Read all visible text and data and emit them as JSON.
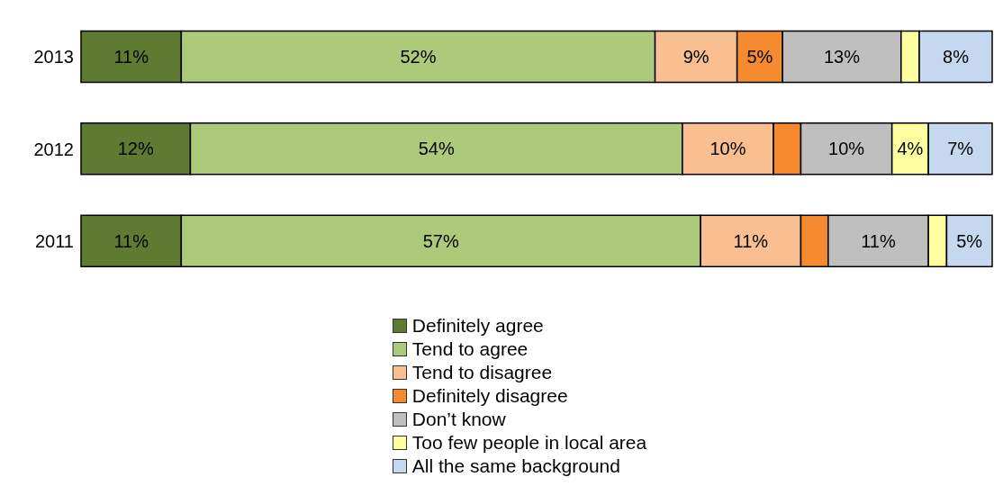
{
  "chart_data": {
    "type": "bar",
    "orientation": "horizontal",
    "stacked": true,
    "categories": [
      "2013",
      "2012",
      "2011"
    ],
    "legend": "bottom",
    "tick_labels": "y",
    "series": [
      {
        "name": "Definitely agree",
        "color": "#5e7b31",
        "values": [
          11,
          12,
          11
        ],
        "value_labels": [
          "11%",
          "12%",
          "11%"
        ]
      },
      {
        "name": "Tend to agree",
        "color": "#adca7b",
        "values": [
          52,
          54,
          57
        ],
        "value_labels": [
          "52%",
          "54%",
          "57%"
        ]
      },
      {
        "name": "Tend to disagree",
        "color": "#f9bf91",
        "values": [
          9,
          10,
          11
        ],
        "value_labels": [
          "9%",
          "10%",
          "11%"
        ]
      },
      {
        "name": "Definitely disagree",
        "color": "#f58a2e",
        "values": [
          5,
          3,
          3
        ],
        "value_labels": [
          "5%",
          null,
          null
        ]
      },
      {
        "name": "Don’t know",
        "color": "#bfbfbf",
        "values": [
          13,
          10,
          11
        ],
        "value_labels": [
          "13%",
          "10%",
          "11%"
        ]
      },
      {
        "name": "Too few people in local area",
        "color": "#ffffa0",
        "values": [
          2,
          4,
          2
        ],
        "value_labels": [
          null,
          "4%",
          null
        ]
      },
      {
        "name": "All the same background",
        "color": "#c6d8ef",
        "values": [
          8,
          7,
          5
        ],
        "value_labels": [
          "8%",
          "7%",
          "5%"
        ]
      }
    ]
  }
}
